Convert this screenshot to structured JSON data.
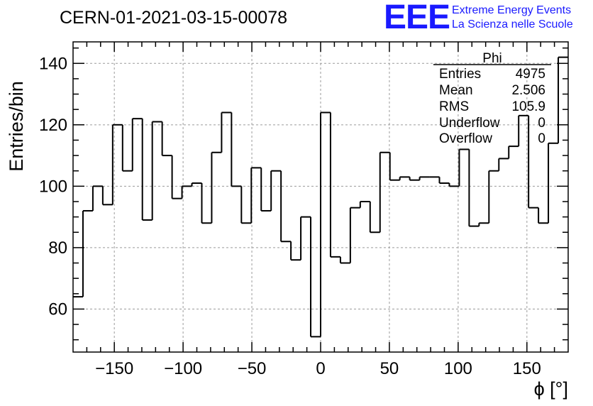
{
  "header": {
    "title": "CERN-01-2021-03-15-00078",
    "logo_text": "EEE",
    "logo_line1": "Extreme Energy Events",
    "logo_line2": "La Scienza nelle Scuole",
    "logo_color": "#1a1aff"
  },
  "chart_data": {
    "type": "histogram",
    "title": "CERN-01-2021-03-15-00078",
    "xlabel": "ϕ [°]",
    "ylabel": "Entries/bin",
    "xlim": [
      -180,
      180
    ],
    "ylim": [
      46,
      147
    ],
    "bin_width": 7.2,
    "grid": true,
    "x_ticks": [
      -150,
      -100,
      -50,
      0,
      50,
      100,
      150
    ],
    "y_ticks": [
      60,
      80,
      100,
      120,
      140
    ],
    "line_color": "#000000",
    "series": [
      {
        "bin_edges_start": -180,
        "values": [
          64,
          92,
          100,
          94,
          120,
          105,
          122,
          89,
          121,
          110,
          96,
          100,
          101,
          88,
          111,
          124,
          100,
          88,
          106,
          92,
          105,
          82,
          76,
          90,
          51,
          124,
          77,
          75,
          93,
          95,
          85,
          111,
          102,
          103,
          102,
          103,
          103,
          101,
          100,
          112,
          87,
          88,
          105,
          109,
          113,
          123,
          93,
          88,
          114,
          142
        ]
      }
    ],
    "stats_box": {
      "title": "Phi",
      "rows": [
        {
          "label": "Entries",
          "value": "4975"
        },
        {
          "label": "Mean",
          "value": "2.506"
        },
        {
          "label": "RMS",
          "value": "105.9"
        },
        {
          "label": "Underflow",
          "value": "0"
        },
        {
          "label": "Overflow",
          "value": "0"
        }
      ]
    }
  }
}
